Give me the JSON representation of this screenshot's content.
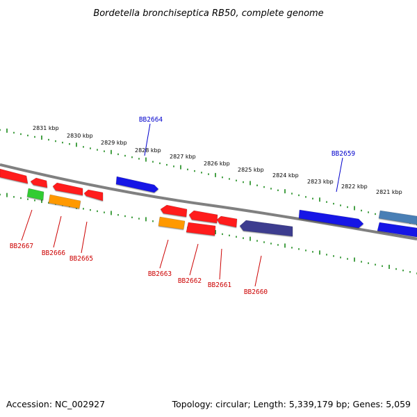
{
  "title": "Bordetella bronchiseptica RB50, complete genome",
  "footer": {
    "accession": "Accession: NC_002927",
    "topology": "Topology: circular; Length: 5,339,179 bp; Genes: 5,059"
  },
  "colors": {
    "backbone": "#808080",
    "tick": "#1a8a1a",
    "forward_label": "#0000cc",
    "reverse_label": "#cc0000"
  },
  "scale_labels": [
    "2831 kbp",
    "2830 kbp",
    "2829 kbp",
    "2828 kbp",
    "2827 kbp",
    "2826 kbp",
    "2825 kbp",
    "2824 kbp",
    "2823 kbp",
    "2822 kbp",
    "2821 kbp"
  ],
  "gene_labels": [
    {
      "name": "BB2664",
      "strand": "forward"
    },
    {
      "name": "BB2659",
      "strand": "forward"
    },
    {
      "name": "BB2667",
      "strand": "reverse"
    },
    {
      "name": "BB2666",
      "strand": "reverse"
    },
    {
      "name": "BB2665",
      "strand": "reverse"
    },
    {
      "name": "BB2663",
      "strand": "reverse"
    },
    {
      "name": "BB2662",
      "strand": "reverse"
    },
    {
      "name": "BB2661",
      "strand": "reverse"
    },
    {
      "name": "BB2660",
      "strand": "reverse"
    }
  ],
  "features": [
    {
      "name": "feature-forward-red-1",
      "color": "#ff1a1a"
    },
    {
      "name": "feature-forward-bb2664",
      "color": "#1414e6"
    },
    {
      "name": "feature-forward-bb2659",
      "color": "#1414e6"
    },
    {
      "name": "feature-forward-steelblue",
      "color": "#4a7fb5"
    },
    {
      "name": "feature-reverse-red-a",
      "color": "#ff1a1a"
    },
    {
      "name": "feature-reverse-red-b",
      "color": "#ff1a1a"
    },
    {
      "name": "feature-reverse-red-c",
      "color": "#ff1a1a"
    },
    {
      "name": "feature-reverse-green",
      "color": "#33cc33"
    },
    {
      "name": "feature-reverse-orange-bb2666",
      "color": "#ff9900"
    },
    {
      "name": "feature-reverse-red-d",
      "color": "#ff1a1a"
    },
    {
      "name": "feature-reverse-red-e",
      "color": "#ff1a1a"
    },
    {
      "name": "feature-reverse-red-f",
      "color": "#ff1a1a"
    },
    {
      "name": "feature-reverse-purple-bb2663",
      "color": "#3d3d8f"
    },
    {
      "name": "feature-reverse-orange-bb2662",
      "color": "#ff9900"
    },
    {
      "name": "feature-reverse-red-bb2660",
      "color": "#ff1a1a"
    },
    {
      "name": "feature-reverse-blue-right",
      "color": "#1414e6"
    }
  ]
}
